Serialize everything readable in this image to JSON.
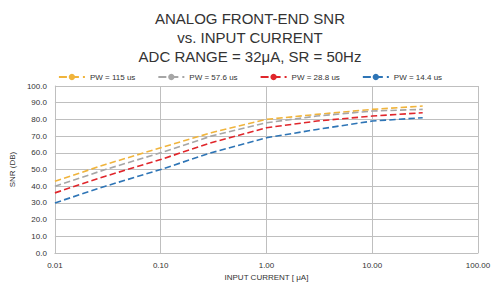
{
  "chart_data": {
    "type": "line",
    "title": "ANALOG FRONT-END SNR\nvs. INPUT CURRENT\nADC RANGE = 32μA, SR = 50Hz",
    "x_label": "INPUT CURRENT [ μA]",
    "y_label": "SNR (DB)",
    "x": [
      0.01,
      0.03,
      0.1,
      0.3,
      1,
      3,
      10,
      30
    ],
    "series": [
      {
        "name": "PW = 115 us",
        "color": "#f0b43c",
        "values": [
          43,
          53,
          63,
          72,
          80,
          83,
          86,
          88
        ]
      },
      {
        "name": "PW = 57.6 us",
        "color": "#a6a6a6",
        "values": [
          40,
          50,
          60,
          70,
          78,
          82,
          85,
          86
        ]
      },
      {
        "name": "PW = 28.8 us",
        "color": "#e0262b",
        "values": [
          36,
          46,
          56,
          66,
          75,
          79,
          82,
          84
        ]
      },
      {
        "name": "PW = 14.4 us",
        "color": "#2e75b6",
        "values": [
          30,
          40,
          50,
          60,
          69,
          74,
          79,
          81
        ]
      }
    ],
    "log": "x",
    "xlim": [
      0.01,
      100
    ],
    "xticks": [
      {
        "value": 0.01,
        "label": "0.01"
      },
      {
        "value": 0.1,
        "label": "0.10"
      },
      {
        "value": 1,
        "label": "1.00"
      },
      {
        "value": 10,
        "label": "10.00"
      },
      {
        "value": 100,
        "label": "100.00"
      }
    ],
    "ylim": [
      0,
      100
    ],
    "yticks": [
      {
        "value": 0,
        "label": "0.0"
      },
      {
        "value": 10,
        "label": "10.0"
      },
      {
        "value": 20,
        "label": "20.0"
      },
      {
        "value": 30,
        "label": "30.0"
      },
      {
        "value": 40,
        "label": "40.0"
      },
      {
        "value": 50,
        "label": "50.0"
      },
      {
        "value": 60,
        "label": "60.0"
      },
      {
        "value": 70,
        "label": "70.0"
      },
      {
        "value": 80,
        "label": "80.0"
      },
      {
        "value": 90,
        "label": "90.0"
      },
      {
        "value": 100,
        "label": "100.0"
      }
    ],
    "grid": true,
    "legend": "top",
    "line_style": "dashed",
    "marker": "none"
  }
}
